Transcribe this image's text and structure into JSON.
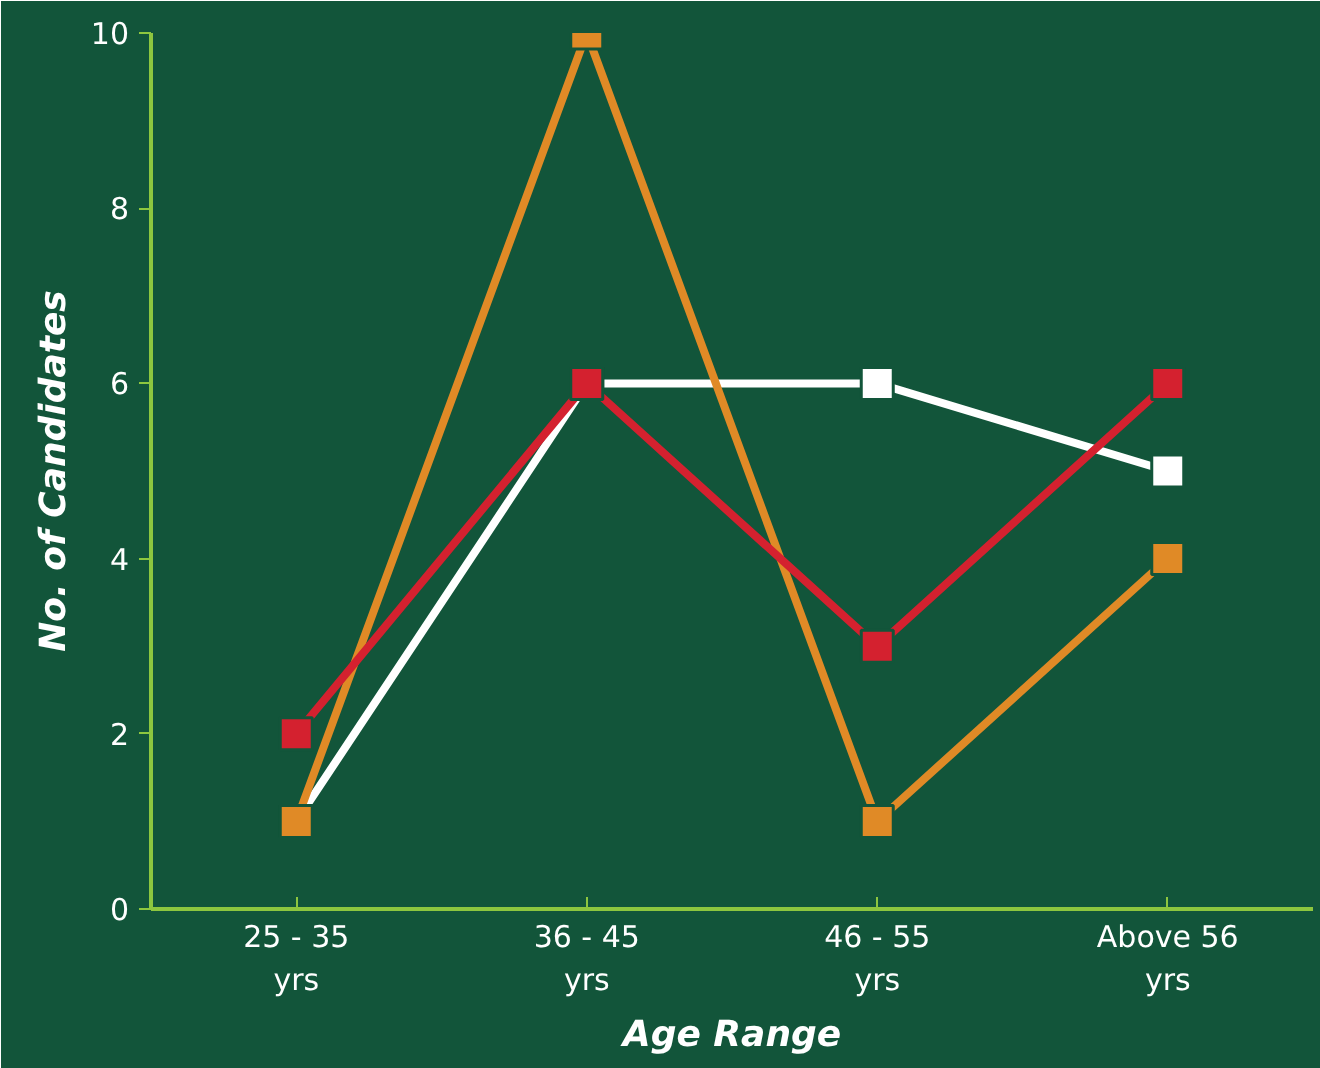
{
  "chart_data": {
    "type": "line",
    "xlabel": "Age Range",
    "ylabel": "No. of Candidates",
    "categories": [
      "25 - 35\nyrs",
      "36 - 45\nyrs",
      "46 - 55\nyrs",
      "Above 56\nyrs"
    ],
    "series": [
      {
        "color": "#ffffff",
        "values": [
          1,
          6,
          6,
          5
        ]
      },
      {
        "color": "#e08a26",
        "values": [
          1,
          10,
          1,
          4
        ]
      },
      {
        "color": "#d4212f",
        "values": [
          2,
          6,
          3,
          6
        ]
      }
    ],
    "ylim": [
      0,
      10
    ],
    "yticks": [
      0,
      2,
      4,
      6,
      8,
      10
    ],
    "grid": false,
    "marker": "square",
    "line_style": "solid"
  }
}
